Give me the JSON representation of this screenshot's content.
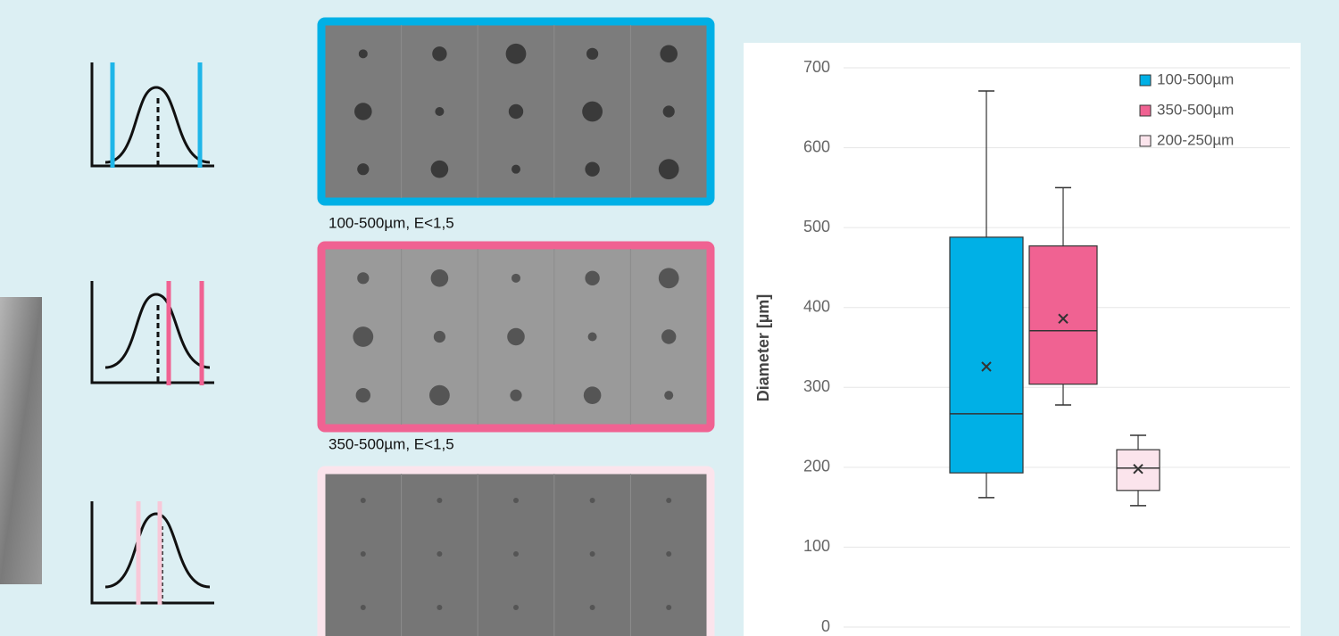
{
  "captions": [
    "100-500µm, E<1,5",
    "350-500µm, E<1,5"
  ],
  "chart_data": {
    "type": "box",
    "y_label": "Diameter [µm]",
    "ylim": [
      0,
      700
    ],
    "yticks": [
      0,
      100,
      200,
      300,
      400,
      500,
      600,
      700
    ],
    "grid": true,
    "legend": "top-right",
    "series": [
      {
        "name": "100-500µm",
        "color": "#00b0e6",
        "whisker_low": 162,
        "q1": 193,
        "median": 267,
        "q3": 488,
        "whisker_high": 671,
        "mean": 326
      },
      {
        "name": "350-500µm",
        "color": "#f06292",
        "whisker_low": 278,
        "q1": 304,
        "median": 371,
        "q3": 477,
        "whisker_high": 550,
        "mean": 386
      },
      {
        "name": "200-250µm",
        "color": "#fbe4ec",
        "whisker_low": 152,
        "q1": 171,
        "median": 199,
        "q3": 222,
        "whisker_high": 240,
        "mean": 198
      }
    ]
  }
}
